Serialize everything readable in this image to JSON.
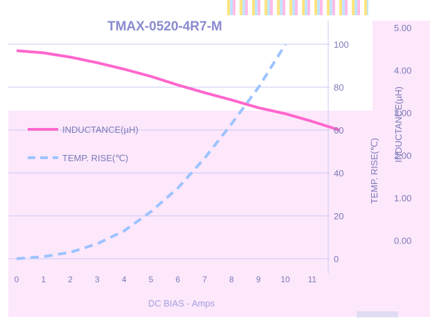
{
  "chart_data": {
    "type": "line",
    "title": "TMAX-0520-4R7-M",
    "xlabel": "DC BIAS - Amps",
    "x_ticks": [
      "0",
      "1",
      "2",
      "3",
      "4",
      "5",
      "6",
      "7",
      "8",
      "9",
      "10",
      "11"
    ],
    "xlim": [
      0,
      12
    ],
    "left_axis": {
      "label": "TEMP. RISE(℃)",
      "ylim": [
        0,
        100
      ],
      "ticks": [
        "0",
        "20",
        "40",
        "60",
        "80",
        "100"
      ]
    },
    "right_axis": {
      "label": "INDUCTANCE(µH)",
      "ylim": [
        0,
        5
      ],
      "ticks": [
        "0.00",
        "1.00",
        "2.00",
        "3.00",
        "4.00",
        "5.00"
      ]
    },
    "series": [
      {
        "name": "INDUCTANCE(µH)",
        "axis": "right",
        "style": "solid",
        "color": "#ff66cc",
        "x": [
          0,
          1,
          2,
          3,
          4,
          5,
          6,
          7,
          8,
          9,
          10,
          11,
          12
        ],
        "values": [
          4.85,
          4.8,
          4.7,
          4.57,
          4.42,
          4.25,
          4.05,
          3.87,
          3.7,
          3.52,
          3.38,
          3.2,
          3.0
        ]
      },
      {
        "name": "TEMP. RISE(℃)",
        "axis": "left",
        "style": "dashed",
        "color": "#9cc3ff",
        "x": [
          0,
          1,
          2,
          3,
          4,
          5,
          6,
          7,
          8,
          9,
          10
        ],
        "values": [
          0,
          1,
          3,
          7,
          13,
          22,
          33,
          47,
          63,
          80,
          100
        ]
      }
    ],
    "grid": true,
    "legend": "top-left",
    "colors": {
      "plot_bg": "#fde7fb",
      "grid": "#c8c8f4",
      "axis_text": "#7a7ab8"
    }
  }
}
